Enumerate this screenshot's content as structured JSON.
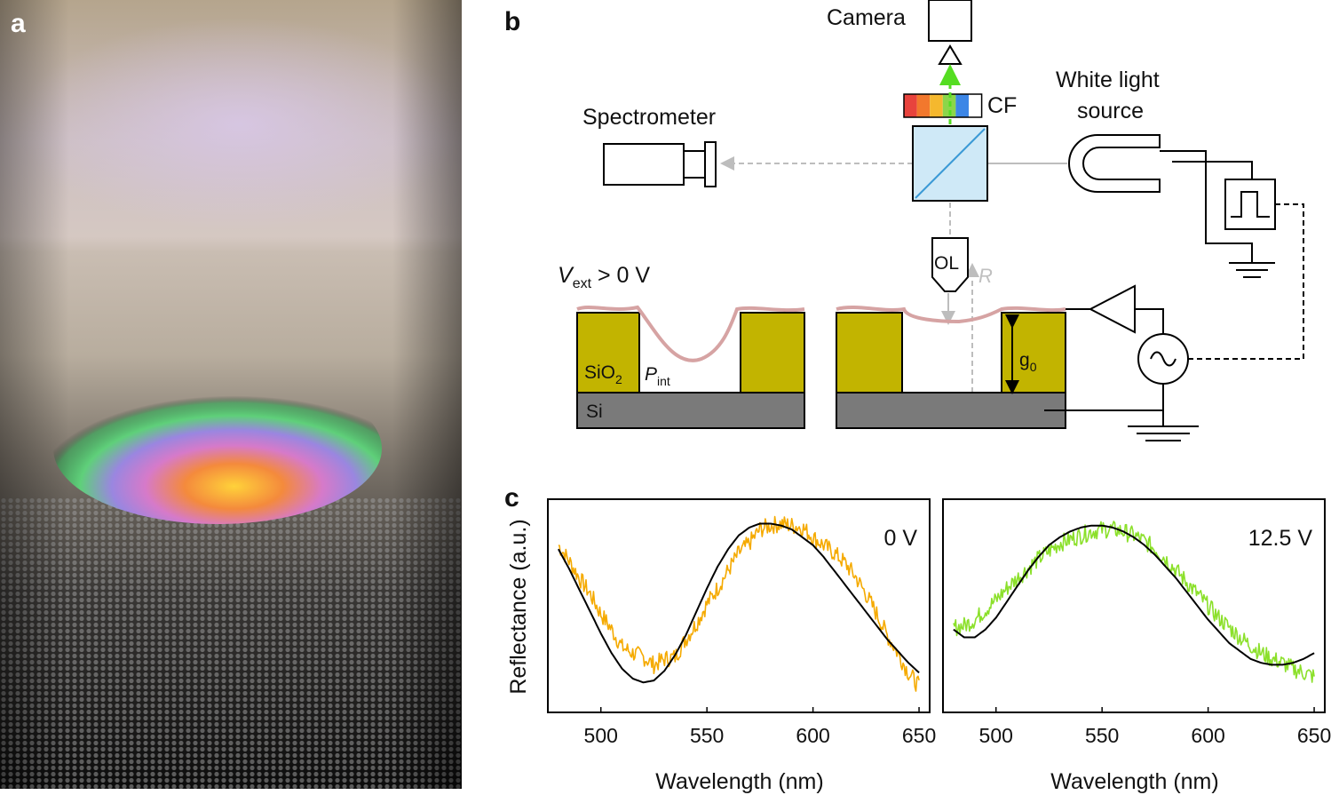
{
  "panel_labels": {
    "a": "a",
    "b": "b",
    "c": "c"
  },
  "setup": {
    "camera": "Camera",
    "color_filter": "CF",
    "white_light_line1": "White light",
    "white_light_line2": "source",
    "spectrometer": "Spectrometer",
    "objective": "OL",
    "reflected": "R",
    "voltage_V": "V",
    "voltage_sub": "ext",
    "voltage_rest": " > 0 V",
    "oxide_base": "SiO",
    "oxide_sub": "2",
    "pressure_P": "P",
    "pressure_sub": "int",
    "silicon": "Si",
    "gap_g": "g",
    "gap_sub": "0",
    "filter_colors": [
      "#e8433d",
      "#f2782d",
      "#f5b82e",
      "#8bd64a",
      "#3c86e6",
      "#ffffff"
    ],
    "oxide_color": "#c2b400",
    "silicon_color": "#7a7a7a",
    "membrane_color": "#d6a3a3",
    "beam_color": "#bdbdbd",
    "green_beam_color": "#55dd22",
    "splitter_color": "#cfe9f7"
  },
  "chart_data": [
    {
      "type": "line",
      "title": "0 V",
      "xlabel": "Wavelength (nm)",
      "ylabel": "Reflectance (a.u.)",
      "xlim": [
        475,
        655
      ],
      "ylim": [
        0,
        1
      ],
      "xticks": [
        500,
        550,
        600,
        650
      ],
      "series": [
        {
          "name": "measured",
          "color": "#f5aa00",
          "noisy": true,
          "x": [
            480,
            485,
            490,
            495,
            500,
            505,
            510,
            515,
            520,
            525,
            530,
            535,
            540,
            545,
            550,
            555,
            560,
            565,
            570,
            575,
            580,
            585,
            590,
            595,
            600,
            605,
            610,
            615,
            620,
            625,
            630,
            635,
            640,
            645,
            650
          ],
          "y": [
            0.82,
            0.74,
            0.65,
            0.57,
            0.47,
            0.39,
            0.3,
            0.27,
            0.25,
            0.21,
            0.24,
            0.25,
            0.34,
            0.42,
            0.52,
            0.6,
            0.69,
            0.78,
            0.83,
            0.9,
            0.92,
            0.93,
            0.92,
            0.91,
            0.86,
            0.82,
            0.78,
            0.73,
            0.66,
            0.57,
            0.47,
            0.36,
            0.27,
            0.17,
            0.1
          ]
        },
        {
          "name": "fit",
          "color": "#000000",
          "noisy": false,
          "x": [
            480,
            485,
            490,
            495,
            500,
            505,
            510,
            515,
            520,
            525,
            530,
            535,
            540,
            545,
            550,
            555,
            560,
            565,
            570,
            575,
            580,
            585,
            590,
            595,
            600,
            605,
            610,
            615,
            620,
            625,
            630,
            635,
            640,
            645,
            650
          ],
          "y": [
            0.8,
            0.7,
            0.59,
            0.48,
            0.37,
            0.27,
            0.19,
            0.14,
            0.12,
            0.13,
            0.18,
            0.26,
            0.36,
            0.48,
            0.6,
            0.71,
            0.8,
            0.87,
            0.91,
            0.93,
            0.93,
            0.92,
            0.9,
            0.86,
            0.82,
            0.76,
            0.69,
            0.62,
            0.55,
            0.48,
            0.41,
            0.34,
            0.28,
            0.22,
            0.17
          ]
        }
      ]
    },
    {
      "type": "line",
      "title": "12.5 V",
      "xlabel": "Wavelength (nm)",
      "ylabel": "",
      "xlim": [
        475,
        655
      ],
      "ylim": [
        0,
        1
      ],
      "xticks": [
        500,
        550,
        600,
        650
      ],
      "series": [
        {
          "name": "measured",
          "color": "#8be02a",
          "noisy": true,
          "x": [
            480,
            485,
            490,
            495,
            500,
            505,
            510,
            515,
            520,
            525,
            530,
            535,
            540,
            545,
            550,
            555,
            560,
            565,
            570,
            575,
            580,
            585,
            590,
            595,
            600,
            605,
            610,
            615,
            620,
            625,
            630,
            635,
            640,
            645,
            650
          ],
          "y": [
            0.4,
            0.41,
            0.44,
            0.49,
            0.54,
            0.6,
            0.65,
            0.7,
            0.75,
            0.79,
            0.83,
            0.85,
            0.87,
            0.89,
            0.9,
            0.9,
            0.89,
            0.87,
            0.84,
            0.8,
            0.75,
            0.69,
            0.63,
            0.57,
            0.51,
            0.45,
            0.4,
            0.35,
            0.31,
            0.27,
            0.24,
            0.22,
            0.19,
            0.17,
            0.15
          ]
        },
        {
          "name": "fit",
          "color": "#000000",
          "noisy": false,
          "x": [
            480,
            485,
            490,
            495,
            500,
            505,
            510,
            515,
            520,
            525,
            530,
            535,
            540,
            545,
            550,
            555,
            560,
            565,
            570,
            575,
            580,
            585,
            590,
            595,
            600,
            605,
            610,
            615,
            620,
            625,
            630,
            635,
            640,
            645,
            650
          ],
          "y": [
            0.39,
            0.35,
            0.35,
            0.39,
            0.45,
            0.53,
            0.61,
            0.69,
            0.76,
            0.82,
            0.86,
            0.89,
            0.91,
            0.92,
            0.92,
            0.91,
            0.89,
            0.86,
            0.82,
            0.77,
            0.71,
            0.65,
            0.58,
            0.51,
            0.44,
            0.38,
            0.32,
            0.28,
            0.24,
            0.22,
            0.21,
            0.21,
            0.22,
            0.24,
            0.27
          ]
        }
      ]
    }
  ]
}
